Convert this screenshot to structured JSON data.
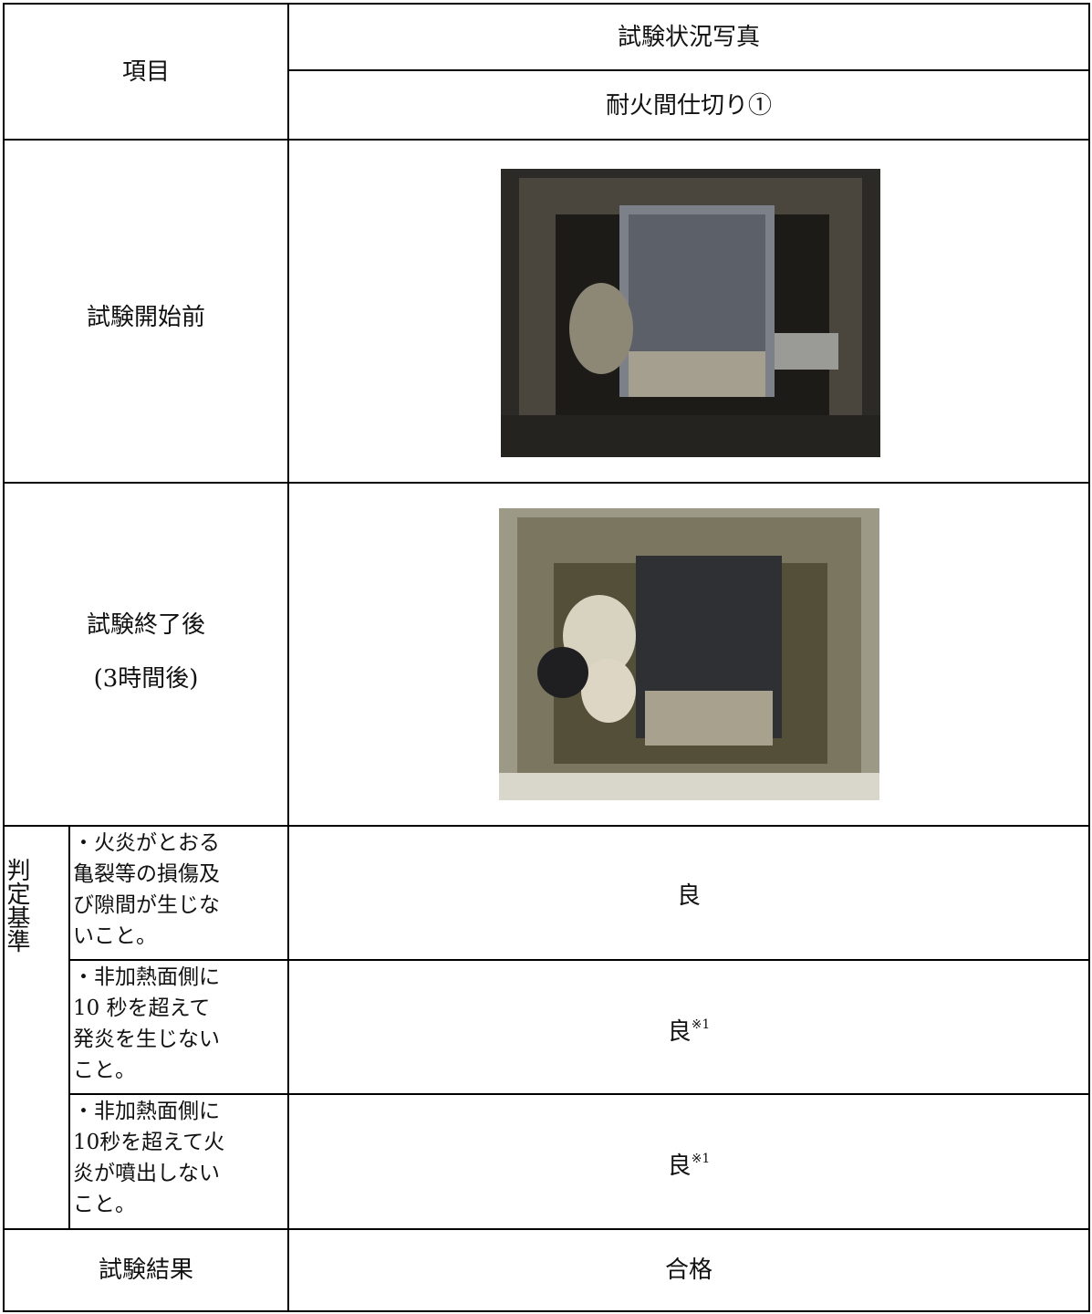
{
  "header": {
    "item": "項目",
    "photos": "試験状況写真",
    "specimen": "耐火間仕切り①"
  },
  "rows": [
    {
      "label": "試験開始前"
    },
    {
      "label": "試験終了後",
      "sublabel": "(3時間後)"
    }
  ],
  "criteria": {
    "label": "判定基準",
    "items": [
      {
        "lines": [
          "・火炎がとおる",
          "亀裂等の損傷及",
          "び隙間が生じな",
          "いこと。"
        ],
        "result": "良"
      },
      {
        "lines": [
          "・非加熱面側に",
          "10 秒を超えて",
          "発炎を生じない",
          "こと。"
        ],
        "result": "良",
        "note": "※1"
      },
      {
        "lines": [
          "・非加熱面側に",
          "10秒を超えて火",
          "炎が噴出しない",
          "こと。"
        ],
        "result": "良",
        "note": "※1"
      }
    ]
  },
  "footer": {
    "label": "試験結果",
    "result": "合格"
  }
}
